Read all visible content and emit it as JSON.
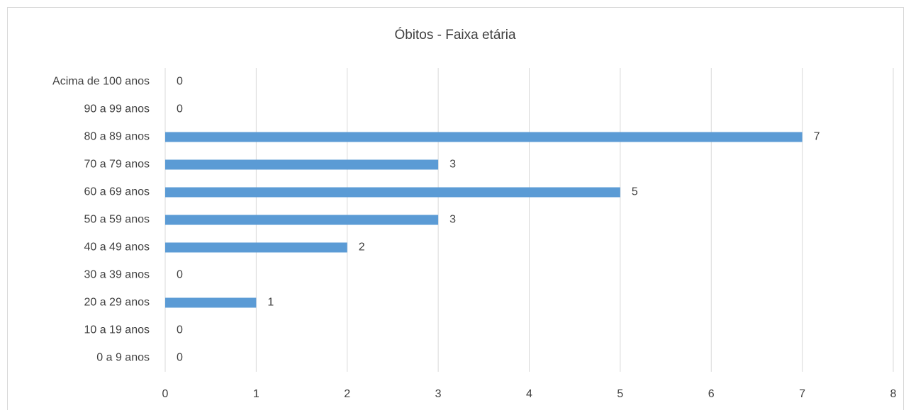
{
  "chart_data": {
    "type": "bar",
    "orientation": "horizontal",
    "title": "Óbitos - Faixa etária",
    "categories": [
      "0 a 9 anos",
      "10 a 19 anos",
      "20 a 29 anos",
      "30 a 39 anos",
      "40 a 49 anos",
      "50 a 59 anos",
      "60 a 69 anos",
      "70 a 79 anos",
      "80 a 89 anos",
      "90 a 99 anos",
      "Acima de 100 anos"
    ],
    "values": [
      0,
      0,
      1,
      0,
      2,
      3,
      5,
      3,
      7,
      0,
      0
    ],
    "color": "#5b9bd5",
    "xlim": [
      0,
      8
    ],
    "xticks": [
      0,
      1,
      2,
      3,
      4,
      5,
      6,
      7,
      8
    ],
    "grid": true
  }
}
